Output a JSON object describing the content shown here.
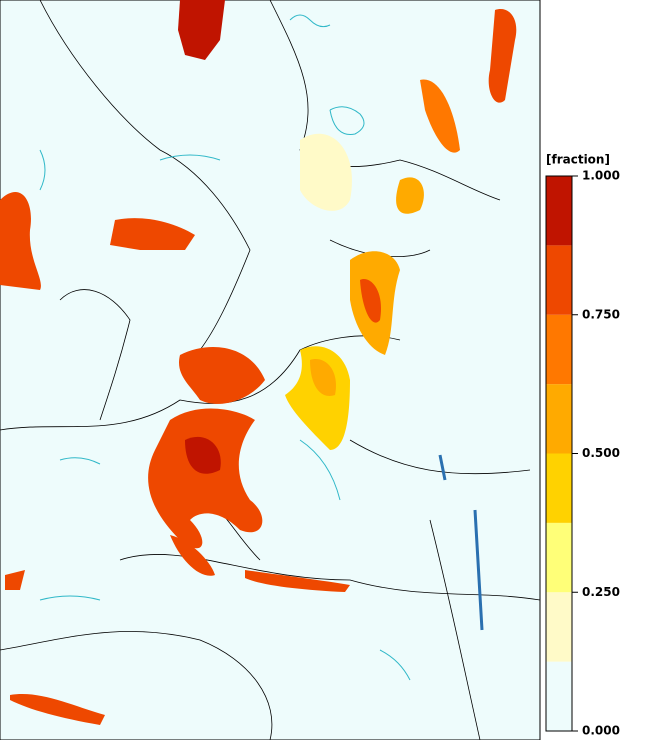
{
  "colorbar": {
    "title": "[fraction]",
    "range": [
      0,
      1
    ],
    "bounds": [
      0,
      0.125,
      0.25,
      0.375,
      0.5,
      0.625,
      0.75,
      0.875,
      1
    ],
    "colors": [
      "#eefcfc",
      "#fffac8",
      "#ffff78",
      "#ffd200",
      "#ffaa00",
      "#ff7800",
      "#ee4800",
      "#c01400"
    ],
    "ticks": [
      {
        "value": 0,
        "label": "0.000"
      },
      {
        "value": 0.25,
        "label": "0.250"
      },
      {
        "value": 0.5,
        "label": "0.500"
      },
      {
        "value": 0.75,
        "label": "0.750"
      },
      {
        "value": 1,
        "label": "1.000"
      }
    ]
  }
}
